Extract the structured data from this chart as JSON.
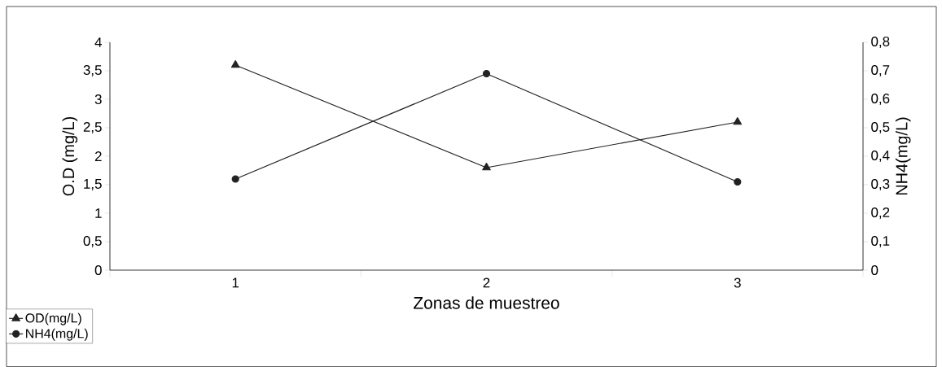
{
  "chart_data": {
    "type": "line",
    "xlabel": "Zonas de muestreo",
    "ylabel": "O.D (mg/L)",
    "y2label": "NH4(mg/L)",
    "categories": [
      "1",
      "2",
      "3"
    ],
    "series": [
      {
        "name": "OD(mg/L)",
        "color": "#222222",
        "marker": "triangle",
        "values": [
          3.6,
          1.8,
          2.6
        ]
      },
      {
        "name": "NH4(mg/L)",
        "color": "#222222",
        "marker": "circle",
        "axis": "y2",
        "values": [
          0.32,
          0.69,
          0.31
        ]
      }
    ],
    "ylim": [
      0,
      4
    ],
    "yticks": [
      0,
      {
        "value": 0.5,
        "label": "0,5"
      },
      1,
      {
        "value": 1.5,
        "label": "1,5"
      },
      2,
      {
        "value": 2.5,
        "label": "2,5"
      },
      3,
      {
        "value": 3.5,
        "label": "3,5"
      },
      4
    ],
    "y2lim": [
      0,
      0.8
    ],
    "y2ticks": [
      0,
      {
        "value": 0.1,
        "label": "0,1"
      },
      {
        "value": 0.2,
        "label": "0,2"
      },
      {
        "value": 0.3,
        "label": "0,3"
      },
      {
        "value": 0.4,
        "label": "0,4"
      },
      {
        "value": 0.5,
        "label": "0,5"
      },
      {
        "value": 0.6,
        "label": "0,6"
      },
      {
        "value": 0.7,
        "label": "0,7"
      },
      {
        "value": 0.8,
        "label": "0,8"
      }
    ],
    "legend": "bottom left",
    "grid": false
  }
}
